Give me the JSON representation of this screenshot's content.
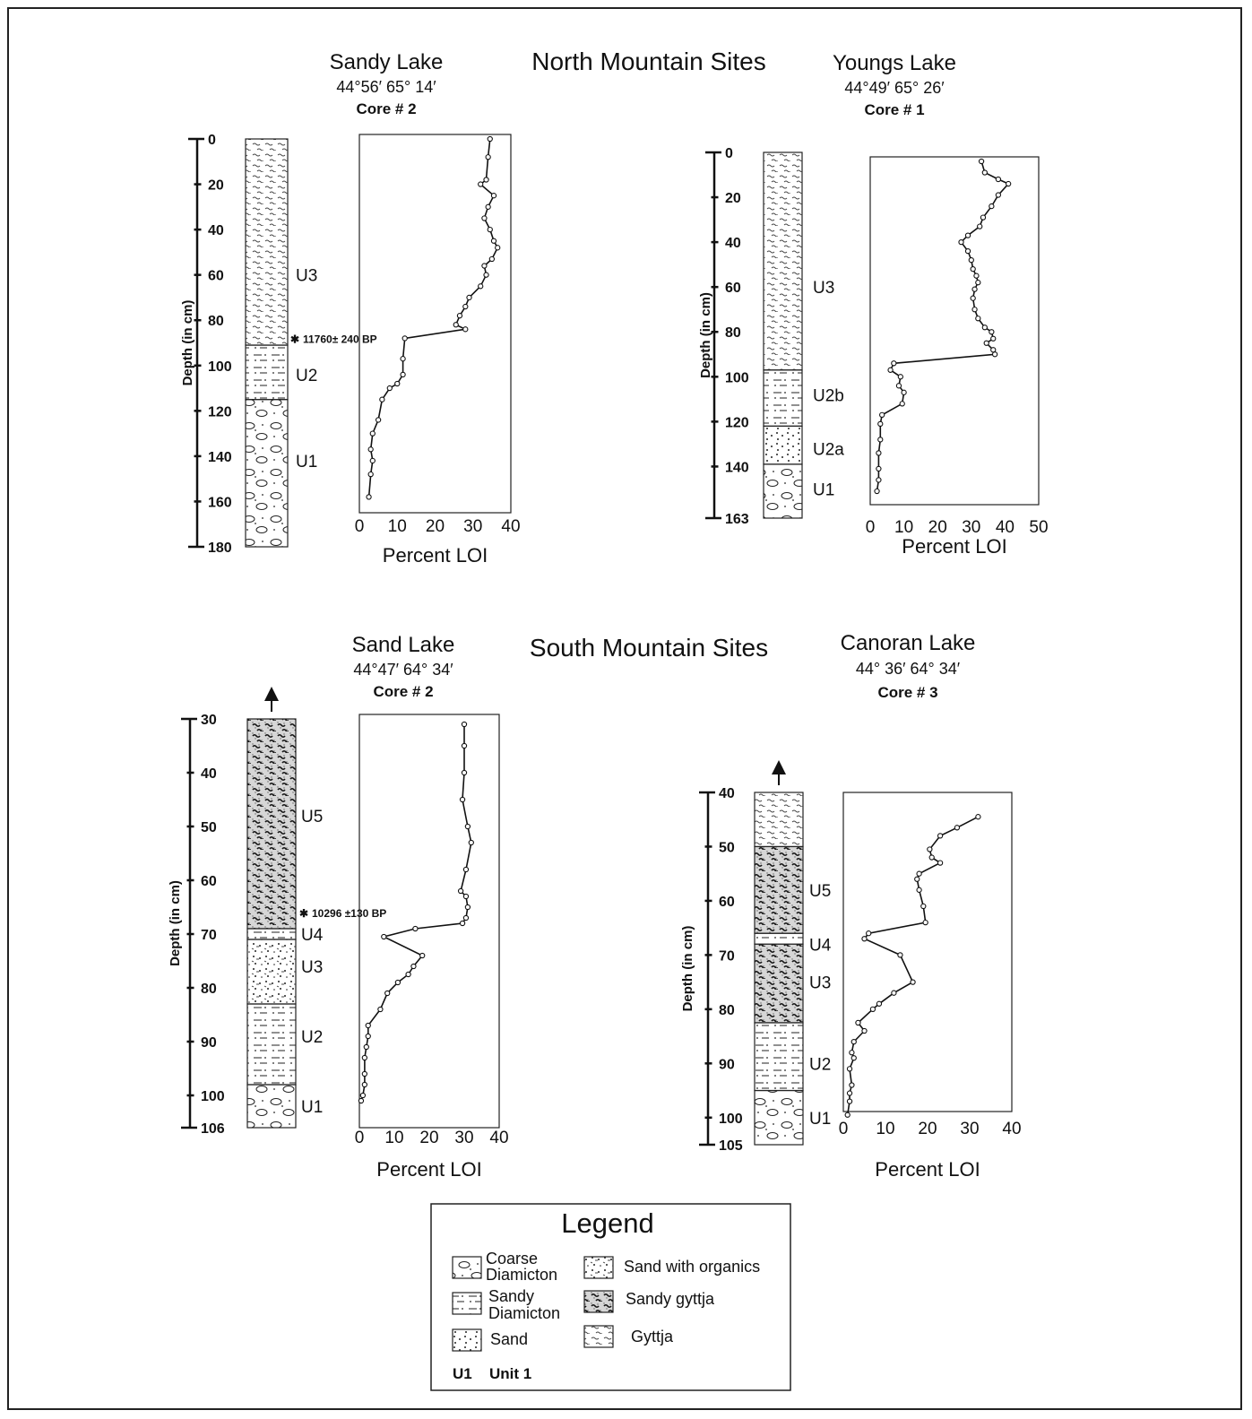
{
  "sections": {
    "north": {
      "title": "North Mountain Sites"
    },
    "south": {
      "title": "South Mountain Sites"
    }
  },
  "chart_data": [
    {
      "type": "line",
      "site": "Sandy Lake",
      "coords": "44°56′ 65° 14′",
      "core": "Core # 2",
      "ylabel": "Depth (in cm)",
      "xlabel": "Percent LOI",
      "ylim": [
        0,
        180
      ],
      "xlim": [
        0,
        40
      ],
      "yticks": [
        0,
        20,
        40,
        60,
        80,
        100,
        120,
        140,
        160,
        180
      ],
      "xticks": [
        0,
        10,
        20,
        30,
        40
      ],
      "units": [
        {
          "label": "U3",
          "from": 0,
          "to": 91,
          "pattern": "gyttja"
        },
        {
          "label": "U2",
          "from": 91,
          "to": 115,
          "pattern": "sandy-diamicton"
        },
        {
          "label": "U1",
          "from": 115,
          "to": 180,
          "pattern": "coarse-diamicton"
        }
      ],
      "unit_label_depths": {
        "U3": 60,
        "U2": 104,
        "U1": 142
      },
      "annotation": {
        "text": "11760± 240 BP",
        "depth": 88
      },
      "points": [
        [
          34.5,
          0
        ],
        [
          34,
          8
        ],
        [
          33.5,
          18
        ],
        [
          32,
          20
        ],
        [
          35.5,
          25
        ],
        [
          34,
          30
        ],
        [
          33,
          35
        ],
        [
          34.5,
          40
        ],
        [
          35.5,
          45
        ],
        [
          36.5,
          48
        ],
        [
          35,
          53
        ],
        [
          33,
          56
        ],
        [
          33.5,
          60
        ],
        [
          32,
          65
        ],
        [
          29,
          70
        ],
        [
          28,
          74
        ],
        [
          26.5,
          78
        ],
        [
          25.5,
          82
        ],
        [
          28,
          84
        ],
        [
          12,
          88
        ],
        [
          11.5,
          97
        ],
        [
          11.5,
          104
        ],
        [
          10,
          108
        ],
        [
          8,
          110
        ],
        [
          6,
          115
        ],
        [
          5,
          124
        ],
        [
          3.5,
          130
        ],
        [
          3,
          137
        ],
        [
          3.5,
          142
        ],
        [
          3,
          148
        ],
        [
          2.5,
          158
        ]
      ]
    },
    {
      "type": "line",
      "site": "Youngs Lake",
      "coords": "44°49′ 65° 26′",
      "core": "Core # 1",
      "ylabel": "Depth (in cm)",
      "xlabel": "Percent LOI",
      "ylim": [
        0,
        163
      ],
      "xlim": [
        0,
        50
      ],
      "yticks": [
        0,
        20,
        40,
        60,
        80,
        100,
        120,
        140,
        163
      ],
      "xticks": [
        0,
        10,
        20,
        30,
        40,
        50
      ],
      "units": [
        {
          "label": "U3",
          "from": 0,
          "to": 97,
          "pattern": "gyttja"
        },
        {
          "label": "U2b",
          "from": 97,
          "to": 122,
          "pattern": "sandy-diamicton"
        },
        {
          "label": "U2a",
          "from": 122,
          "to": 139,
          "pattern": "sand"
        },
        {
          "label": "U1",
          "from": 139,
          "to": 163,
          "pattern": "coarse-diamicton"
        }
      ],
      "unit_label_depths": {
        "U3": 60,
        "U2b": 108,
        "U2a": 132,
        "U1": 150
      },
      "points": [
        [
          33,
          4
        ],
        [
          34,
          9
        ],
        [
          38,
          12
        ],
        [
          41,
          14
        ],
        [
          38,
          19
        ],
        [
          36,
          24
        ],
        [
          33.5,
          29
        ],
        [
          32.5,
          33
        ],
        [
          29,
          37
        ],
        [
          27,
          40
        ],
        [
          29,
          44
        ],
        [
          30,
          48
        ],
        [
          30.5,
          52
        ],
        [
          31.5,
          55
        ],
        [
          32,
          58
        ],
        [
          31,
          61
        ],
        [
          30.5,
          65
        ],
        [
          31,
          70
        ],
        [
          32,
          74
        ],
        [
          34,
          78
        ],
        [
          36,
          80
        ],
        [
          36.5,
          83
        ],
        [
          34.5,
          85
        ],
        [
          36.5,
          88
        ],
        [
          37,
          90
        ],
        [
          7,
          94
        ],
        [
          6,
          97
        ],
        [
          9,
          100
        ],
        [
          8.5,
          104
        ],
        [
          10,
          107
        ],
        [
          9.5,
          112
        ],
        [
          3.5,
          117
        ],
        [
          3,
          121
        ],
        [
          3,
          128
        ],
        [
          2.5,
          134
        ],
        [
          2.5,
          141
        ],
        [
          2.5,
          146
        ],
        [
          2,
          151
        ]
      ]
    },
    {
      "type": "line",
      "site": "Sand Lake",
      "coords": "44°47′ 64° 34′",
      "core": "Core # 2",
      "ylabel": "Depth (in cm)",
      "xlabel": "Percent LOI",
      "ylim": [
        30,
        106
      ],
      "xlim": [
        0,
        40
      ],
      "yticks": [
        30,
        40,
        50,
        60,
        70,
        80,
        90,
        100,
        106
      ],
      "xticks": [
        0,
        10,
        20,
        30,
        40
      ],
      "units": [
        {
          "label": "U5",
          "from": 30,
          "to": 69,
          "pattern": "sandy-gyttja"
        },
        {
          "label": "U4",
          "from": 69,
          "to": 71,
          "pattern": "sandy-diamicton"
        },
        {
          "label": "U3",
          "from": 71,
          "to": 83,
          "pattern": "sand-organics"
        },
        {
          "label": "U2",
          "from": 83,
          "to": 98,
          "pattern": "sandy-diamicton"
        },
        {
          "label": "U1",
          "from": 98,
          "to": 106,
          "pattern": "coarse-diamicton"
        }
      ],
      "unit_label_depths": {
        "U5": 48,
        "U4": 70,
        "U3": 76,
        "U2": 89,
        "U1": 102
      },
      "annotation": {
        "text": "10296 ±130 BP",
        "depth": 66
      },
      "points": [
        [
          30,
          31
        ],
        [
          30,
          35
        ],
        [
          30,
          40
        ],
        [
          29.5,
          45
        ],
        [
          31,
          50
        ],
        [
          32,
          53
        ],
        [
          30.5,
          58
        ],
        [
          29,
          62
        ],
        [
          30.5,
          63
        ],
        [
          31,
          65
        ],
        [
          30.5,
          67
        ],
        [
          29.5,
          68
        ],
        [
          16,
          69
        ],
        [
          7,
          70.5
        ],
        [
          18,
          74
        ],
        [
          15.5,
          76
        ],
        [
          14,
          77.5
        ],
        [
          11,
          79
        ],
        [
          8,
          81
        ],
        [
          6,
          84
        ],
        [
          2.5,
          87
        ],
        [
          2.5,
          89
        ],
        [
          2,
          91
        ],
        [
          1.5,
          93
        ],
        [
          1.5,
          96
        ],
        [
          1.5,
          98
        ],
        [
          1,
          100
        ],
        [
          0.5,
          101
        ]
      ]
    },
    {
      "type": "line",
      "site": "Canoran Lake",
      "coords": "44° 36′ 64° 34′",
      "core": "Core # 3",
      "ylabel": "Depth (in cm)",
      "xlabel": "Percent LOI",
      "ylim": [
        40,
        105
      ],
      "xlim": [
        0,
        40
      ],
      "yticks": [
        40,
        50,
        60,
        70,
        80,
        90,
        100,
        105
      ],
      "xticks": [
        0,
        10,
        20,
        30,
        40
      ],
      "units": [
        {
          "label": "U5",
          "from": 40,
          "to": 50,
          "pattern": "gyttja"
        },
        {
          "label": "U5",
          "from": 50,
          "to": 66,
          "pattern": "sandy-gyttja"
        },
        {
          "label": "U4",
          "from": 66,
          "to": 68,
          "pattern": "sandy-diamicton"
        },
        {
          "label": "U3",
          "from": 68,
          "to": 82.5,
          "pattern": "sandy-gyttja"
        },
        {
          "label": "U2",
          "from": 82.5,
          "to": 95,
          "pattern": "sandy-diamicton"
        },
        {
          "label": "U1",
          "from": 95,
          "to": 105,
          "pattern": "coarse-diamicton"
        }
      ],
      "unit_label_depths": {
        "U5": 58,
        "U4": 68,
        "U3": 75,
        "U2": 90,
        "U1": 100
      },
      "points": [
        [
          32,
          44.5
        ],
        [
          27,
          46.5
        ],
        [
          23,
          48
        ],
        [
          20.5,
          50.5
        ],
        [
          21,
          52
        ],
        [
          23,
          53
        ],
        [
          18,
          55
        ],
        [
          17.5,
          56
        ],
        [
          18,
          58
        ],
        [
          19,
          61
        ],
        [
          19.5,
          64
        ],
        [
          6,
          66
        ],
        [
          5,
          67
        ],
        [
          13.5,
          70
        ],
        [
          16.5,
          75
        ],
        [
          12,
          77
        ],
        [
          8.5,
          79
        ],
        [
          7,
          80
        ],
        [
          3.5,
          82.5
        ],
        [
          5,
          84
        ],
        [
          2.5,
          86
        ],
        [
          2,
          88
        ],
        [
          2.5,
          89
        ],
        [
          1.5,
          91
        ],
        [
          2,
          94
        ],
        [
          1.5,
          95.5
        ],
        [
          1.5,
          97
        ],
        [
          1,
          99.5
        ]
      ]
    }
  ],
  "legend": {
    "title": "Legend",
    "items": [
      {
        "pattern": "coarse-diamicton",
        "lines": [
          "Coarse",
          "Diamicton"
        ]
      },
      {
        "pattern": "sand-organics",
        "lines": [
          "Sand with organics"
        ]
      },
      {
        "pattern": "sandy-diamicton",
        "lines": [
          "Sandy",
          "Diamicton"
        ]
      },
      {
        "pattern": "sandy-gyttja",
        "lines": [
          "Sandy gyttja"
        ]
      },
      {
        "pattern": "sand",
        "lines": [
          "Sand"
        ]
      },
      {
        "pattern": "gyttja",
        "lines": [
          "Gyttja"
        ]
      }
    ],
    "unit_key": {
      "code": "U1",
      "text": "Unit 1"
    }
  }
}
